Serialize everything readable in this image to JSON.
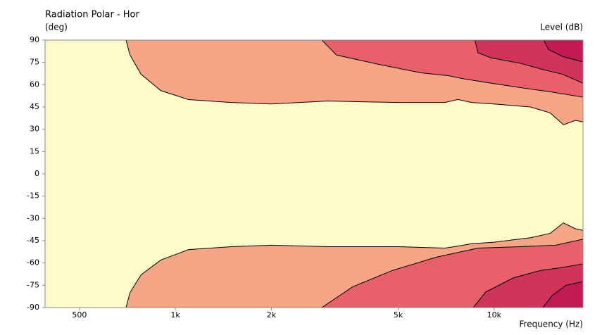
{
  "chart_data": {
    "type": "contour",
    "title": "Radiation Polar - Hor",
    "ylabel": "(deg)",
    "colorbar_label": "Level (dB)",
    "xlabel": "Frequency (Hz)",
    "xscale": "log",
    "xlim": [
      390,
      19000
    ],
    "ylim": [
      -90,
      90
    ],
    "xticks": [
      {
        "value": 500,
        "label": "500"
      },
      {
        "value": 1000,
        "label": "1k"
      },
      {
        "value": 2000,
        "label": "2k"
      },
      {
        "value": 5000,
        "label": "5k"
      },
      {
        "value": 10000,
        "label": "10k"
      }
    ],
    "yticks": [
      90,
      75,
      60,
      45,
      30,
      15,
      0,
      -15,
      -30,
      -45,
      -60,
      -75,
      -90
    ],
    "background": "#fdfbc8",
    "series": [
      {
        "color": "#f6a686",
        "fill": "above",
        "x": [
          700,
          720,
          780,
          900,
          1100,
          1500,
          2000,
          3000,
          5000,
          7000,
          7700,
          8500,
          10000,
          13000,
          15000,
          16500,
          18000,
          19000
        ],
        "values": [
          90,
          80,
          67,
          56,
          50,
          48,
          47,
          49,
          48,
          48,
          50,
          48,
          47,
          45,
          41,
          33,
          36,
          35
        ]
      },
      {
        "color": "#f6a686",
        "fill": "below",
        "x": [
          700,
          720,
          780,
          900,
          1100,
          1500,
          2000,
          3000,
          5000,
          7000,
          7500,
          8500,
          10000,
          13000,
          15000,
          16500,
          18000,
          19000
        ],
        "values": [
          -90,
          -80,
          -68,
          -58,
          -51,
          -49,
          -48,
          -49,
          -49,
          -50,
          -49,
          -47,
          -46,
          -43,
          -40,
          -33,
          -37,
          -38
        ]
      },
      {
        "color": "#e8606a",
        "fill": "above",
        "x": [
          2880,
          3200,
          4400,
          5900,
          7200,
          8000,
          9800,
          12100,
          14800,
          19000
        ],
        "values": [
          90,
          80,
          73.4,
          68,
          66,
          64,
          61,
          58,
          55.4,
          51.6
        ]
      },
      {
        "color": "#e8606a",
        "fill": "below",
        "x": [
          2880,
          3600,
          4800,
          6600,
          8900,
          12100,
          15600,
          19000
        ],
        "values": [
          -90,
          -76,
          -65,
          -56,
          -50,
          -49,
          -48,
          -44
        ]
      },
      {
        "color": "#d0345a",
        "fill": "above",
        "x": [
          8700,
          8900,
          9800,
          12100,
          14000,
          16400,
          19000
        ],
        "values": [
          90,
          81.5,
          78,
          74.4,
          70.6,
          67,
          61
        ]
      },
      {
        "color": "#d0345a",
        "fill": "below",
        "x": [
          8600,
          9400,
          11500,
          14000,
          16400,
          19000
        ],
        "values": [
          -90,
          -79.6,
          -70,
          -65,
          -63,
          -60.6
        ]
      },
      {
        "color": "#c21a55",
        "fill": "above",
        "x": [
          14300,
          14800,
          16400,
          19000
        ],
        "values": [
          90,
          83.8,
          79,
          75.3
        ]
      },
      {
        "color": "#c21a55",
        "fill": "below",
        "x": [
          14200,
          15200,
          16800,
          19000
        ],
        "values": [
          -90,
          -82,
          -75,
          -72.5
        ]
      }
    ]
  }
}
